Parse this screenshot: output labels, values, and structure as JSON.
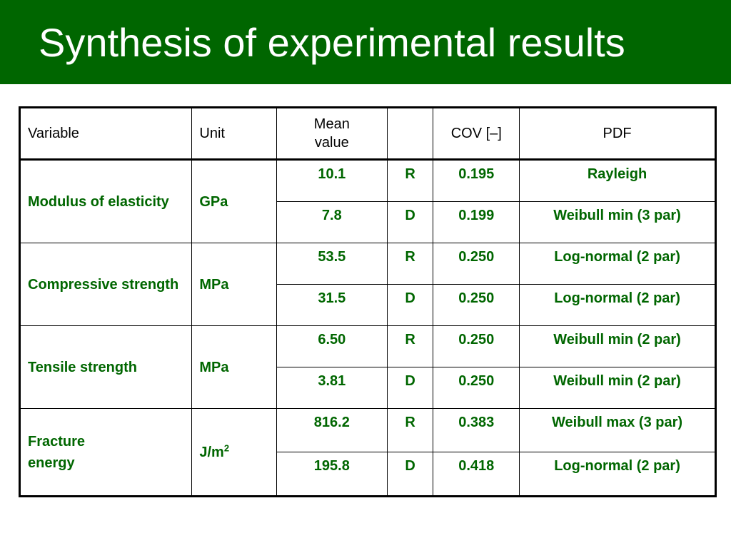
{
  "title": "Synthesis of experimental results",
  "table": {
    "headers": {
      "variable": "Variable",
      "unit": "Unit",
      "mean": "Mean value",
      "blank": "",
      "cov": "COV [–]",
      "pdf": "PDF"
    },
    "groups": [
      {
        "variable": "Modulus of elasticity",
        "unit": "GPa",
        "rows": [
          {
            "mean": "10.1",
            "type": "R",
            "cov": "0.195",
            "pdf": "Rayleigh"
          },
          {
            "mean": "7.8",
            "type": "D",
            "cov": "0.199",
            "pdf": "Weibull min (3 par)"
          }
        ]
      },
      {
        "variable": "Compressive strength",
        "unit": "MPa",
        "rows": [
          {
            "mean": "53.5",
            "type": "R",
            "cov": "0.250",
            "pdf": "Log-normal (2 par)"
          },
          {
            "mean": "31.5",
            "type": "D",
            "cov": "0.250",
            "pdf": "Log-normal (2 par)"
          }
        ]
      },
      {
        "variable": "Tensile strength",
        "unit": "MPa",
        "rows": [
          {
            "mean": "6.50",
            "type": "R",
            "cov": "0.250",
            "pdf": "Weibull min (2 par)"
          },
          {
            "mean": "3.81",
            "type": "D",
            "cov": "0.250",
            "pdf": "Weibull min (2 par)"
          }
        ]
      },
      {
        "variable": "Fracture energy",
        "unit_base": "J/m",
        "unit_sup": "2",
        "rows": [
          {
            "mean": "816.2",
            "type": "R",
            "cov": "0.383",
            "pdf": "Weibull max (3 par)"
          },
          {
            "mean": "195.8",
            "type": "D",
            "cov": "0.418",
            "pdf": "Log-normal (2 par)"
          }
        ]
      }
    ]
  },
  "colors": {
    "header_bar": "#006600",
    "title_text": "#ffffff",
    "body_text": "#006600",
    "header_text": "#000000"
  }
}
